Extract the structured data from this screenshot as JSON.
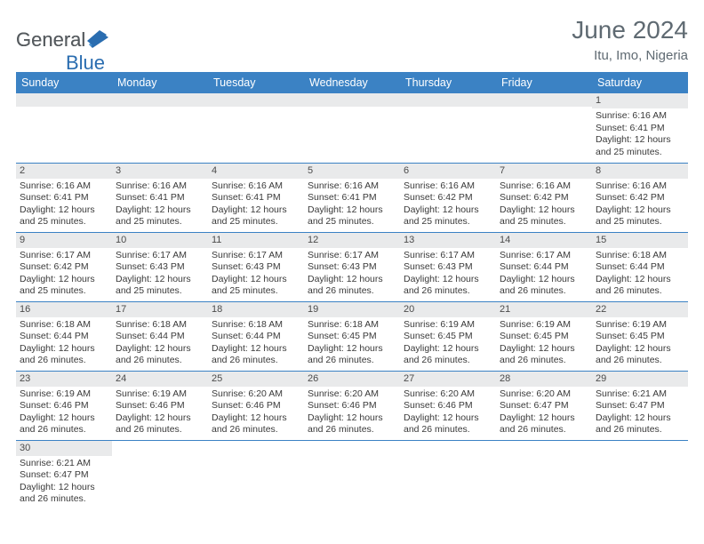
{
  "logo": {
    "part1": "General",
    "part2": "Blue"
  },
  "title": "June 2024",
  "location": "Itu, Imo, Nigeria",
  "colors": {
    "header_bg": "#3b82c4",
    "header_text": "#ffffff",
    "daynum_bg": "#e9eaeb",
    "border": "#3b82c4",
    "title_color": "#5f6a72",
    "logo_gray": "#555a5e",
    "logo_blue": "#2a6db0"
  },
  "weekdays": [
    "Sunday",
    "Monday",
    "Tuesday",
    "Wednesday",
    "Thursday",
    "Friday",
    "Saturday"
  ],
  "weeks": [
    [
      null,
      null,
      null,
      null,
      null,
      null,
      {
        "n": "1",
        "sr": "6:16 AM",
        "ss": "6:41 PM",
        "dl": "12 hours and 25 minutes."
      }
    ],
    [
      {
        "n": "2",
        "sr": "6:16 AM",
        "ss": "6:41 PM",
        "dl": "12 hours and 25 minutes."
      },
      {
        "n": "3",
        "sr": "6:16 AM",
        "ss": "6:41 PM",
        "dl": "12 hours and 25 minutes."
      },
      {
        "n": "4",
        "sr": "6:16 AM",
        "ss": "6:41 PM",
        "dl": "12 hours and 25 minutes."
      },
      {
        "n": "5",
        "sr": "6:16 AM",
        "ss": "6:41 PM",
        "dl": "12 hours and 25 minutes."
      },
      {
        "n": "6",
        "sr": "6:16 AM",
        "ss": "6:42 PM",
        "dl": "12 hours and 25 minutes."
      },
      {
        "n": "7",
        "sr": "6:16 AM",
        "ss": "6:42 PM",
        "dl": "12 hours and 25 minutes."
      },
      {
        "n": "8",
        "sr": "6:16 AM",
        "ss": "6:42 PM",
        "dl": "12 hours and 25 minutes."
      }
    ],
    [
      {
        "n": "9",
        "sr": "6:17 AM",
        "ss": "6:42 PM",
        "dl": "12 hours and 25 minutes."
      },
      {
        "n": "10",
        "sr": "6:17 AM",
        "ss": "6:43 PM",
        "dl": "12 hours and 25 minutes."
      },
      {
        "n": "11",
        "sr": "6:17 AM",
        "ss": "6:43 PM",
        "dl": "12 hours and 25 minutes."
      },
      {
        "n": "12",
        "sr": "6:17 AM",
        "ss": "6:43 PM",
        "dl": "12 hours and 26 minutes."
      },
      {
        "n": "13",
        "sr": "6:17 AM",
        "ss": "6:43 PM",
        "dl": "12 hours and 26 minutes."
      },
      {
        "n": "14",
        "sr": "6:17 AM",
        "ss": "6:44 PM",
        "dl": "12 hours and 26 minutes."
      },
      {
        "n": "15",
        "sr": "6:18 AM",
        "ss": "6:44 PM",
        "dl": "12 hours and 26 minutes."
      }
    ],
    [
      {
        "n": "16",
        "sr": "6:18 AM",
        "ss": "6:44 PM",
        "dl": "12 hours and 26 minutes."
      },
      {
        "n": "17",
        "sr": "6:18 AM",
        "ss": "6:44 PM",
        "dl": "12 hours and 26 minutes."
      },
      {
        "n": "18",
        "sr": "6:18 AM",
        "ss": "6:44 PM",
        "dl": "12 hours and 26 minutes."
      },
      {
        "n": "19",
        "sr": "6:18 AM",
        "ss": "6:45 PM",
        "dl": "12 hours and 26 minutes."
      },
      {
        "n": "20",
        "sr": "6:19 AM",
        "ss": "6:45 PM",
        "dl": "12 hours and 26 minutes."
      },
      {
        "n": "21",
        "sr": "6:19 AM",
        "ss": "6:45 PM",
        "dl": "12 hours and 26 minutes."
      },
      {
        "n": "22",
        "sr": "6:19 AM",
        "ss": "6:45 PM",
        "dl": "12 hours and 26 minutes."
      }
    ],
    [
      {
        "n": "23",
        "sr": "6:19 AM",
        "ss": "6:46 PM",
        "dl": "12 hours and 26 minutes."
      },
      {
        "n": "24",
        "sr": "6:19 AM",
        "ss": "6:46 PM",
        "dl": "12 hours and 26 minutes."
      },
      {
        "n": "25",
        "sr": "6:20 AM",
        "ss": "6:46 PM",
        "dl": "12 hours and 26 minutes."
      },
      {
        "n": "26",
        "sr": "6:20 AM",
        "ss": "6:46 PM",
        "dl": "12 hours and 26 minutes."
      },
      {
        "n": "27",
        "sr": "6:20 AM",
        "ss": "6:46 PM",
        "dl": "12 hours and 26 minutes."
      },
      {
        "n": "28",
        "sr": "6:20 AM",
        "ss": "6:47 PM",
        "dl": "12 hours and 26 minutes."
      },
      {
        "n": "29",
        "sr": "6:21 AM",
        "ss": "6:47 PM",
        "dl": "12 hours and 26 minutes."
      }
    ],
    [
      {
        "n": "30",
        "sr": "6:21 AM",
        "ss": "6:47 PM",
        "dl": "12 hours and 26 minutes."
      },
      null,
      null,
      null,
      null,
      null,
      null
    ]
  ],
  "labels": {
    "sunrise": "Sunrise:",
    "sunset": "Sunset:",
    "daylight": "Daylight:"
  }
}
